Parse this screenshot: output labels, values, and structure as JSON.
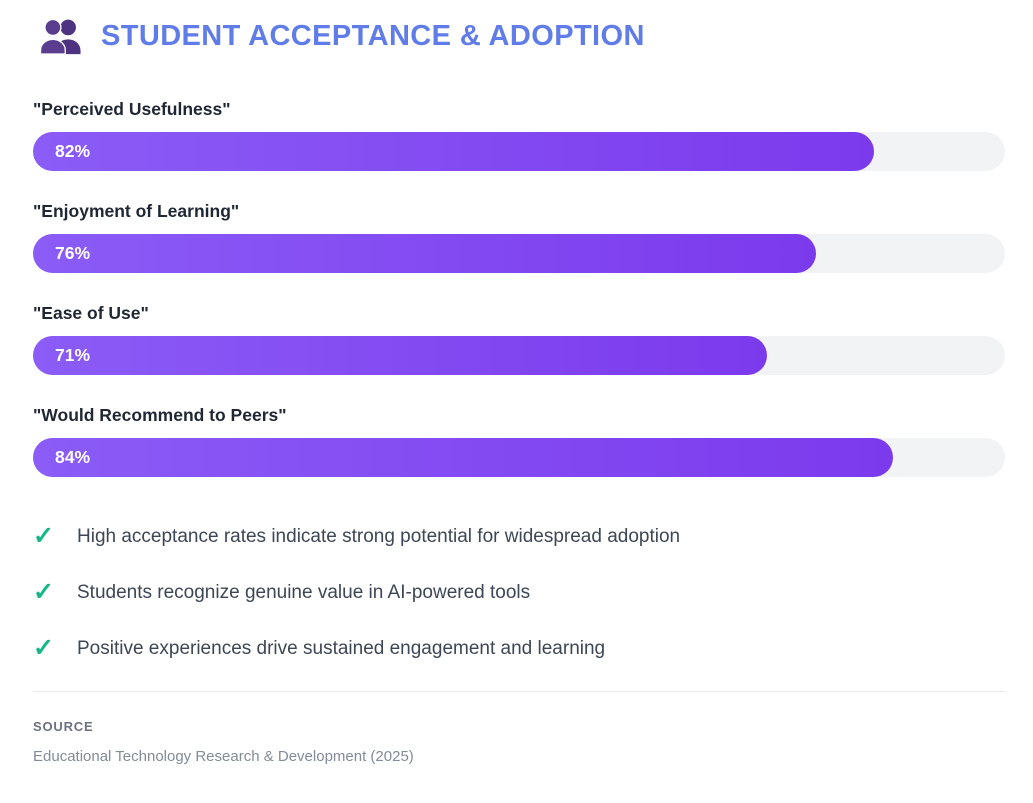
{
  "header": {
    "title": "STUDENT ACCEPTANCE & ADOPTION",
    "icon": "people-icon"
  },
  "chart_data": {
    "type": "bar",
    "orientation": "horizontal",
    "title": "STUDENT ACCEPTANCE & ADOPTION",
    "categories": [
      "\"Perceived Usefulness\"",
      "\"Enjoyment of Learning\"",
      "\"Ease of Use\"",
      "\"Would Recommend to Peers\""
    ],
    "values": [
      82,
      76,
      71,
      84
    ],
    "value_labels": [
      "82%",
      "76%",
      "71%",
      "84%"
    ],
    "xlim": [
      0,
      100
    ],
    "grid": false,
    "legend": false
  },
  "bars": [
    {
      "label": "\"Perceived Usefulness\"",
      "value": 82,
      "display": "82%"
    },
    {
      "label": "\"Enjoyment of Learning\"",
      "value": 76,
      "display": "76%"
    },
    {
      "label": "\"Ease of Use\"",
      "value": 71,
      "display": "71%"
    },
    {
      "label": "\"Would Recommend to Peers\"",
      "value": 84,
      "display": "84%"
    }
  ],
  "insights": [
    {
      "icon": "check-icon",
      "text": "High acceptance rates indicate strong potential for widespread adoption"
    },
    {
      "icon": "check-icon",
      "text": "Students recognize genuine value in AI-powered tools"
    },
    {
      "icon": "check-icon",
      "text": "Positive experiences drive sustained engagement and learning"
    }
  ],
  "footer": {
    "source_label": "SOURCE",
    "source_text": "Educational Technology Research & Development (2025)"
  },
  "colors": {
    "title": "#5f7ce8",
    "bar_gradient_start": "#8b5cf6",
    "bar_gradient_end": "#7c3aed",
    "bar_track": "#f2f3f5",
    "check": "#12b886",
    "icon": "#5b3d8f"
  }
}
